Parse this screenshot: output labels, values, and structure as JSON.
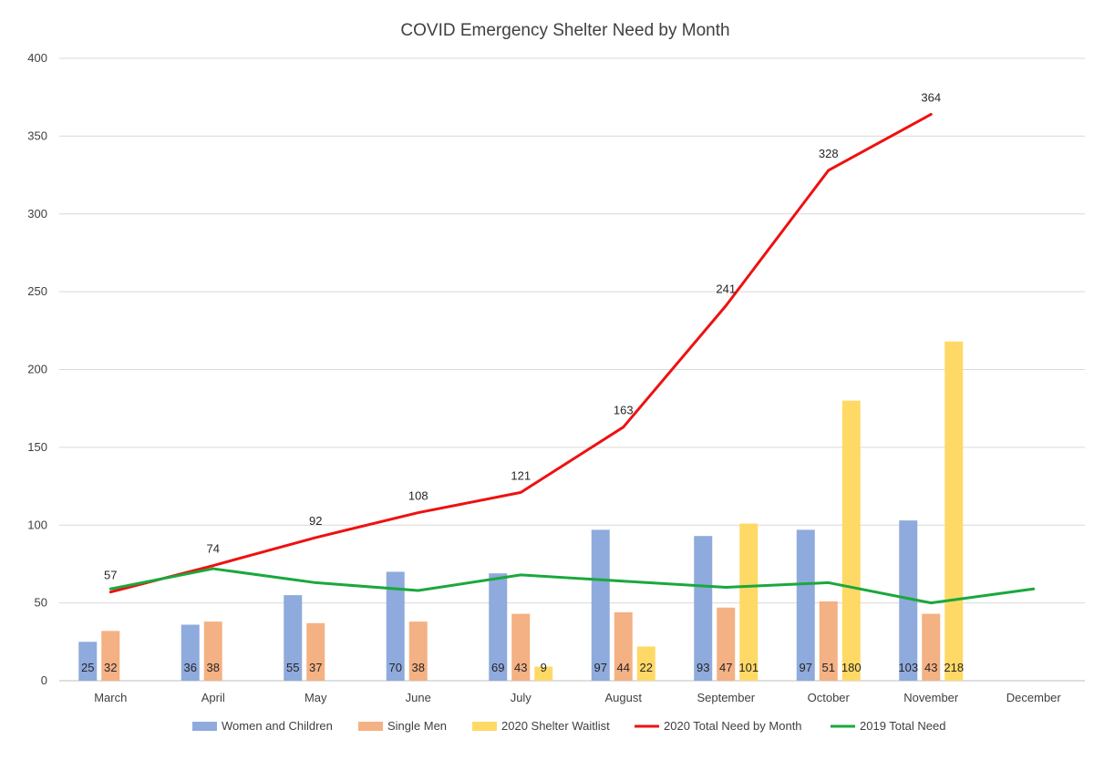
{
  "chart_data": {
    "type": "bar",
    "title": "COVID Emergency Shelter Need by Month",
    "categories": [
      "March",
      "April",
      "May",
      "June",
      "July",
      "August",
      "September",
      "October",
      "November",
      "December"
    ],
    "ylim": [
      0,
      400
    ],
    "yticks": [
      0,
      50,
      100,
      150,
      200,
      250,
      300,
      350,
      400
    ],
    "grid": true,
    "legend_position": "bottom",
    "bar_series": [
      {
        "name": "Women and Children",
        "color": "#8faadc",
        "values": [
          25,
          36,
          55,
          70,
          69,
          97,
          93,
          97,
          103,
          null
        ],
        "labels": [
          "25",
          "36",
          "55",
          "70",
          "69",
          "97",
          "93",
          "97",
          "103",
          ""
        ]
      },
      {
        "name": "Single Men",
        "color": "#f4b183",
        "values": [
          32,
          38,
          37,
          38,
          43,
          44,
          47,
          51,
          43,
          null
        ],
        "labels": [
          "32",
          "38",
          "37",
          "38",
          "43",
          "44",
          "47",
          "51",
          "43",
          ""
        ]
      },
      {
        "name": "2020 Shelter Waitlist",
        "color": "#ffd966",
        "values": [
          null,
          null,
          null,
          null,
          9,
          22,
          101,
          180,
          218,
          null
        ],
        "labels": [
          "",
          "",
          "",
          "",
          "9",
          "22",
          "101",
          "180",
          "218",
          ""
        ]
      }
    ],
    "line_series": [
      {
        "name": "2020 Total Need by Month",
        "color": "#ee1111",
        "values": [
          57,
          74,
          92,
          108,
          121,
          163,
          241,
          328,
          364,
          null
        ],
        "labels": [
          "57",
          "74",
          "92",
          "108",
          "121",
          "163",
          "241",
          "328",
          "364",
          ""
        ]
      },
      {
        "name": "2019 Total Need",
        "color": "#1aa83c",
        "values": [
          59,
          72,
          63,
          58,
          68,
          64,
          60,
          63,
          50,
          59
        ],
        "labels": [
          "",
          "",
          "",
          "",
          "",
          "",
          "",
          "",
          "",
          ""
        ]
      }
    ]
  }
}
